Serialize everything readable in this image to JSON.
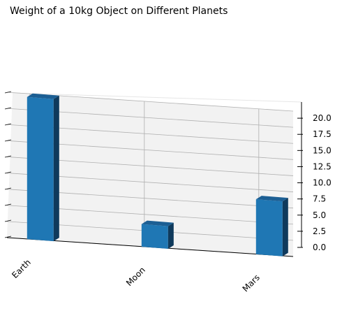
{
  "chart_data": {
    "type": "bar",
    "projection": "3d",
    "title": "Weight of a 10kg Object on Different Planets",
    "categories": [
      "Earth",
      "Moon",
      "Mars"
    ],
    "values": [
      22.0,
      3.5,
      8.5
    ],
    "xlabel": "",
    "ylabel": "",
    "zlim": [
      0,
      22.5
    ],
    "zticks": [
      "0.0",
      "2.5",
      "5.0",
      "7.5",
      "10.0",
      "12.5",
      "15.0",
      "17.5",
      "20.0"
    ],
    "grid": true,
    "bar_color": "#1f77b4"
  }
}
